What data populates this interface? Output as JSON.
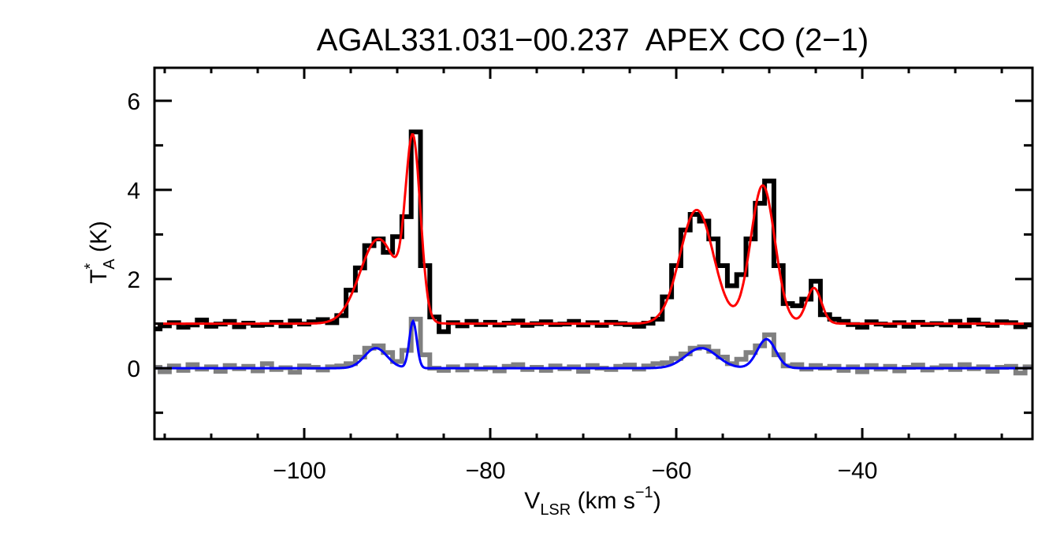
{
  "chart_data": {
    "type": "line",
    "title": "AGAL331.031−00.237  APEX CO (2−1)",
    "xlabel": {
      "main": "V",
      "sub": "LSR",
      "unit_pre": " (km s",
      "sup": "−1",
      "unit_post": ")"
    },
    "ylabel": {
      "main": "T",
      "sup": "*",
      "sub": "A",
      "unit": " (K)"
    },
    "xlim": [
      -116.1,
      -21.7
    ],
    "ylim": [
      -1.59,
      6.74
    ],
    "x_ticks": [
      -100,
      -80,
      -60,
      -40
    ],
    "x_tick_labels": [
      "−100",
      "−80",
      "−60",
      "−40"
    ],
    "x_minor_step": 5,
    "y_ticks": [
      0,
      2,
      4,
      6
    ],
    "y_tick_labels": [
      "0",
      "2",
      "4",
      "6"
    ],
    "y_minor_step": 1,
    "grid": false,
    "x_channels_start": -116,
    "x_channel_step": 1,
    "series": [
      {
        "role": "spectrum (offset)",
        "style": "histogram",
        "color": "#000000",
        "values": [
          0.88,
          0.95,
          1.02,
          0.92,
          0.97,
          1.08,
          0.94,
          0.99,
          1.05,
          0.93,
          1.01,
          0.96,
          0.98,
          1.03,
          0.95,
          1.06,
          0.99,
          1.04,
          1.09,
          1.02,
          1.18,
          1.75,
          2.25,
          2.75,
          2.9,
          2.6,
          2.95,
          3.4,
          5.3,
          2.3,
          1.15,
          0.82,
          1.02,
          0.95,
          1.05,
          0.98,
          1.03,
          0.97,
          1.01,
          1.06,
          0.96,
          1.0,
          1.04,
          0.98,
          0.99,
          1.05,
          0.97,
          1.02,
          0.96,
          1.03,
          1.0,
          0.98,
          0.94,
          1.01,
          1.1,
          1.6,
          2.3,
          3.1,
          3.45,
          3.3,
          2.9,
          2.3,
          1.85,
          2.1,
          2.9,
          3.7,
          4.2,
          2.3,
          1.45,
          1.4,
          1.55,
          1.95,
          1.2,
          1.1,
          1.05,
          0.98,
          0.92,
          1.04,
          0.99,
          0.96,
          1.02,
          0.94,
          1.03,
          0.98,
          1.0,
          0.97,
          1.05,
          0.95,
          1.08,
          0.99,
          0.96,
          1.04,
          1.02,
          0.93,
          0.97
        ]
      },
      {
        "role": "spectrum",
        "style": "histogram",
        "color": "#808080",
        "values": [
          0.02,
          -0.08,
          0.05,
          -0.05,
          0.08,
          -0.02,
          0.03,
          -0.07,
          0.06,
          -0.01,
          0.04,
          -0.06,
          0.1,
          -0.03,
          0.01,
          -0.09,
          0.05,
          0.02,
          -0.04,
          0.03,
          0.05,
          0.1,
          0.25,
          0.45,
          0.5,
          0.35,
          0.15,
          0.4,
          1.1,
          0.3,
          0.0,
          -0.05,
          0.03,
          -0.04,
          0.06,
          -0.02,
          0.01,
          -0.06,
          0.04,
          0.08,
          -0.03,
          0.02,
          -0.05,
          0.05,
          -0.01,
          0.03,
          -0.07,
          0.06,
          0.0,
          -0.03,
          0.04,
          0.07,
          -0.02,
          0.05,
          0.1,
          0.12,
          0.22,
          0.32,
          0.45,
          0.48,
          0.38,
          0.25,
          0.1,
          0.2,
          0.35,
          0.5,
          0.75,
          0.3,
          0.05,
          0.08,
          -0.02,
          0.06,
          0.0,
          0.04,
          -0.05,
          0.03,
          -0.08,
          0.06,
          -0.02,
          0.04,
          -0.06,
          0.02,
          0.07,
          -0.04,
          0.01,
          0.05,
          -0.03,
          0.08,
          -0.01,
          0.03,
          -0.07,
          0.02,
          0.04,
          -0.11,
          0.03
        ]
      },
      {
        "role": "gaussian fit (offset)",
        "style": "smooth",
        "color": "#ff0000",
        "baseline": 1.0,
        "components": [
          {
            "center": -92.0,
            "amplitude": 1.9,
            "sigma": 2.0
          },
          {
            "center": -88.3,
            "amplitude": 3.9,
            "sigma": 0.8
          },
          {
            "center": -57.8,
            "amplitude": 2.55,
            "sigma": 1.8
          },
          {
            "center": -50.7,
            "amplitude": 3.1,
            "sigma": 1.3
          },
          {
            "center": -45.2,
            "amplitude": 0.8,
            "sigma": 0.8
          }
        ]
      },
      {
        "role": "gaussian fit",
        "style": "smooth",
        "color": "#0000ff",
        "baseline": 0.0,
        "components": [
          {
            "center": -92.3,
            "amplitude": 0.45,
            "sigma": 1.2
          },
          {
            "center": -88.3,
            "amplitude": 1.05,
            "sigma": 0.4
          },
          {
            "center": -57.3,
            "amplitude": 0.45,
            "sigma": 1.7
          },
          {
            "center": -50.3,
            "amplitude": 0.65,
            "sigma": 1.0
          }
        ]
      }
    ]
  }
}
